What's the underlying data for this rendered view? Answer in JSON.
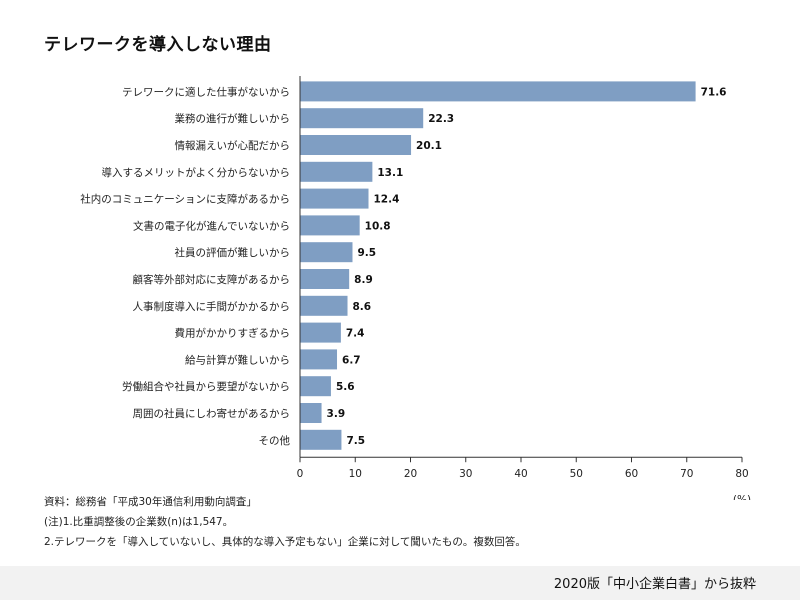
{
  "title": "テレワークを導入しない理由",
  "chart_data": {
    "type": "bar",
    "orientation": "horizontal",
    "categories": [
      "テレワークに適した仕事がないから",
      "業務の進行が難しいから",
      "情報漏えいが心配だから",
      "導入するメリットがよく分からないから",
      "社内のコミュニケーションに支障があるから",
      "文書の電子化が進んでいないから",
      "社員の評価が難しいから",
      "顧客等外部対応に支障があるから",
      "人事制度導入に手間がかかるから",
      "費用がかかりすぎるから",
      "給与計算が難しいから",
      "労働組合や社員から要望がないから",
      "周囲の社員にしわ寄せがあるから",
      "その他"
    ],
    "values": [
      71.6,
      22.3,
      20.1,
      13.1,
      12.4,
      10.8,
      9.5,
      8.9,
      8.6,
      7.4,
      6.7,
      5.6,
      3.9,
      7.5
    ],
    "value_labels": [
      "71.6",
      "22.3",
      "20.1",
      "13.1",
      "12.4",
      "10.8",
      "9.5",
      "8.9",
      "8.6",
      "7.4",
      "6.7",
      "5.6",
      "3.9",
      "7.5"
    ],
    "xlim": [
      0,
      80
    ],
    "xticks": [
      0,
      10,
      20,
      30,
      40,
      50,
      60,
      70,
      80
    ],
    "xlabel": "(%)",
    "bar_color": "#7f9ec3",
    "grid": false
  },
  "notes": [
    "資料：総務省「平成30年通信利用動向調査」",
    "(注)1.比重調整後の企業数(n)は1,547。",
    "2.テレワークを「導入していないし、具体的な導入予定もない」企業に対して聞いたもの。複数回答。"
  ],
  "source": "2020版「中小企業白書」から抜粋"
}
